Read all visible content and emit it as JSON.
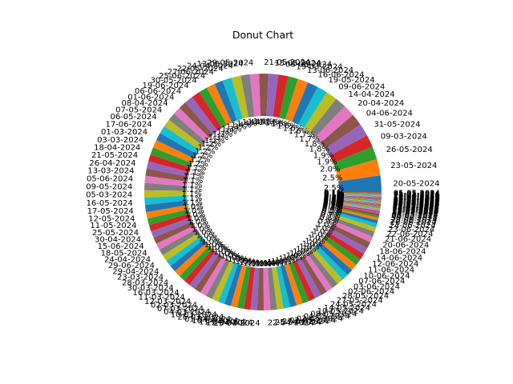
{
  "chart_data": {
    "type": "pie",
    "variant": "donut",
    "title": "Donut Chart",
    "start_angle_deg": 0,
    "direction": "counterclockwise",
    "value_format": "percent_1dp",
    "palette": [
      "#1f77b4",
      "#ff7f0e",
      "#2ca02c",
      "#d62728",
      "#9467bd",
      "#8c564b",
      "#e377c2",
      "#7f7f7f",
      "#bcbd22",
      "#17becf"
    ],
    "categories": [
      "20-05-2024",
      "23-05-2024",
      "26-05-2024",
      "09-03-2024",
      "31-05-2024",
      "04-06-2024",
      "20-04-2024",
      "14-04-2024",
      "09-06-2024",
      "19-05-2024",
      "16-06-2024",
      "13-06-2024",
      "19-03-2024",
      "08-06-2024",
      "15-05-2024",
      "21-05-2024",
      "29-05-2024",
      "13-05-2024",
      "24-04-2024",
      "22-05-2024",
      "27-06-2024",
      "25-06-2024",
      "30-05-2024",
      "19-06-2024",
      "06-06-2024",
      "01-06-2024",
      "08-04-2024",
      "07-05-2024",
      "06-05-2024",
      "17-06-2024",
      "01-03-2024",
      "03-03-2024",
      "18-04-2024",
      "21-05-2024",
      "26-04-2024",
      "13-03-2024",
      "05-06-2024",
      "09-05-2024",
      "05-03-2024",
      "16-05-2024",
      "17-05-2024",
      "12-05-2024",
      "11-05-2024",
      "25-05-2024",
      "30-04-2024",
      "15-06-2024",
      "18-05-2024",
      "24-04-2024",
      "29-06-2024",
      "29-04-2024",
      "23-03-2024",
      "28-03-2024",
      "30-03-2024",
      "16-03-2024",
      "11-03-2024",
      "12-03-2024",
      "02-03-2024",
      "07-03-2024",
      "04-03-2024",
      "10-03-2024",
      "26-03-2024",
      "01-04-2024",
      "10-04-2024",
      "11-04-2024",
      "12-04-2024",
      "15-04-2024",
      "22-04-2024",
      "25-04-2024",
      "27-04-2024",
      "02-05-2024",
      "03-05-2024",
      "04-05-2024",
      "08-05-2024",
      "10-05-2024",
      "14-05-2024",
      "24-05-2024",
      "27-05-2024",
      "28-05-2024",
      "02-06-2024",
      "03-06-2024",
      "07-06-2024",
      "10-06-2024",
      "11-06-2024",
      "12-06-2024",
      "14-06-2024",
      "18-06-2024",
      "20-06-2024",
      "21-06-2024",
      "22-06-2024",
      "23-06-2024",
      "24-06-2024",
      "26-06-2024",
      "28-06-2024",
      "30-06-2024",
      "06-03-2024",
      "08-03-2024",
      "14-03-2024",
      "15-03-2024",
      "17-03-2024",
      "18-03-2024",
      "20-03-2024",
      "21-03-2024",
      "22-03-2024",
      "24-03-2024",
      "25-03-2024",
      "27-03-2024",
      "29-03-2024",
      "31-03-2024",
      "02-04-2024",
      "03-04-2024",
      "04-04-2024",
      "05-04-2024",
      "06-04-2024",
      "07-04-2024",
      "09-04-2024",
      "13-04-2024",
      "16-04-2024",
      "17-04-2024",
      "19-04-2024",
      "21-04-2024",
      "23-04-2024",
      "28-04-2024",
      "01-05-2024",
      "05-05-2024"
    ],
    "values": [
      2.5,
      2.5,
      2.0,
      1.9,
      1.9,
      1.8,
      1.8,
      1.7,
      1.7,
      1.6,
      1.6,
      1.6,
      1.5,
      1.5,
      1.5,
      1.4,
      1.4,
      1.4,
      1.4,
      1.4,
      1.3,
      1.3,
      1.3,
      1.3,
      1.3,
      1.2,
      1.2,
      1.2,
      1.2,
      1.2,
      1.2,
      1.2,
      1.1,
      1.1,
      1.1,
      1.1,
      1.1,
      1.1,
      1.1,
      1.1,
      1.1,
      1.0,
      1.0,
      1.0,
      1.0,
      1.0,
      1.0,
      1.0,
      1.0,
      1.0,
      1.0,
      1.0,
      1.0,
      1.0,
      1.0,
      1.0,
      1.0,
      1.0,
      1.0,
      1.0,
      1.0,
      1.0,
      1.0,
      1.0,
      1.0,
      1.0,
      1.0,
      1.0,
      1.0,
      1.0,
      1.0,
      1.0,
      1.0,
      1.0,
      1.0,
      1.0,
      1.0,
      1.0,
      1.0,
      1.0,
      1.0,
      1.0,
      1.0,
      1.0,
      1.0,
      1.0,
      0.9,
      0.8,
      0.7,
      0.6,
      0.5,
      0.4,
      0.3,
      0.3,
      0.2,
      0.2,
      0.2,
      0.1,
      0.1,
      0.1,
      0.1,
      0.1,
      0.1,
      0.1,
      0.1,
      0.1,
      0.1,
      0.1,
      0.1,
      0.1,
      0.1,
      0.1,
      0.1,
      0.1,
      0.1,
      0.1,
      0.1,
      0.1,
      0.1,
      0.1,
      0.1,
      0.1,
      0.1,
      0.1
    ]
  }
}
